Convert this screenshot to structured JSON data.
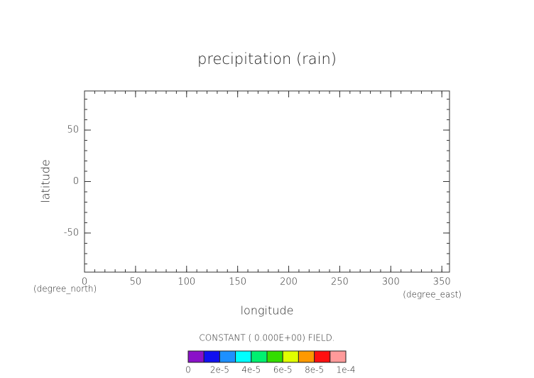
{
  "chart_data": {
    "type": "contour",
    "title": "precipitation (rain)",
    "x_label": "longitude",
    "y_label": "latitude",
    "x_units": "(degree_east)",
    "y_units": "(degree_north)",
    "annotation": "CONSTANT ( 0.000E+00) FIELD.",
    "xlim": [
      0,
      357.5
    ],
    "ylim": [
      -88,
      88
    ],
    "xticks": [
      0,
      50,
      100,
      150,
      200,
      250,
      300,
      350
    ],
    "yticks": [
      -50,
      0,
      50
    ],
    "minor_tick_step": 10,
    "colorbar": {
      "levels": [
        0,
        1e-05,
        2e-05,
        3e-05,
        4e-05,
        5e-05,
        6e-05,
        7e-05,
        8e-05,
        9e-05,
        0.0001
      ],
      "colors": [
        "#8a10c8",
        "#1010f0",
        "#1e90ff",
        "#00ffff",
        "#00f070",
        "#33dd00",
        "#e0ff00",
        "#ff9900",
        "#ff1010",
        "#ff9a9a"
      ],
      "ticks": [
        0,
        {
          "value": 2e-05,
          "label": "2e-5"
        },
        {
          "value": 4e-05,
          "label": "4e-5"
        },
        {
          "value": 6e-05,
          "label": "6e-5"
        },
        {
          "value": 8e-05,
          "label": "8e-5"
        },
        {
          "value": 0.0001,
          "label": "1e-4"
        }
      ]
    }
  }
}
